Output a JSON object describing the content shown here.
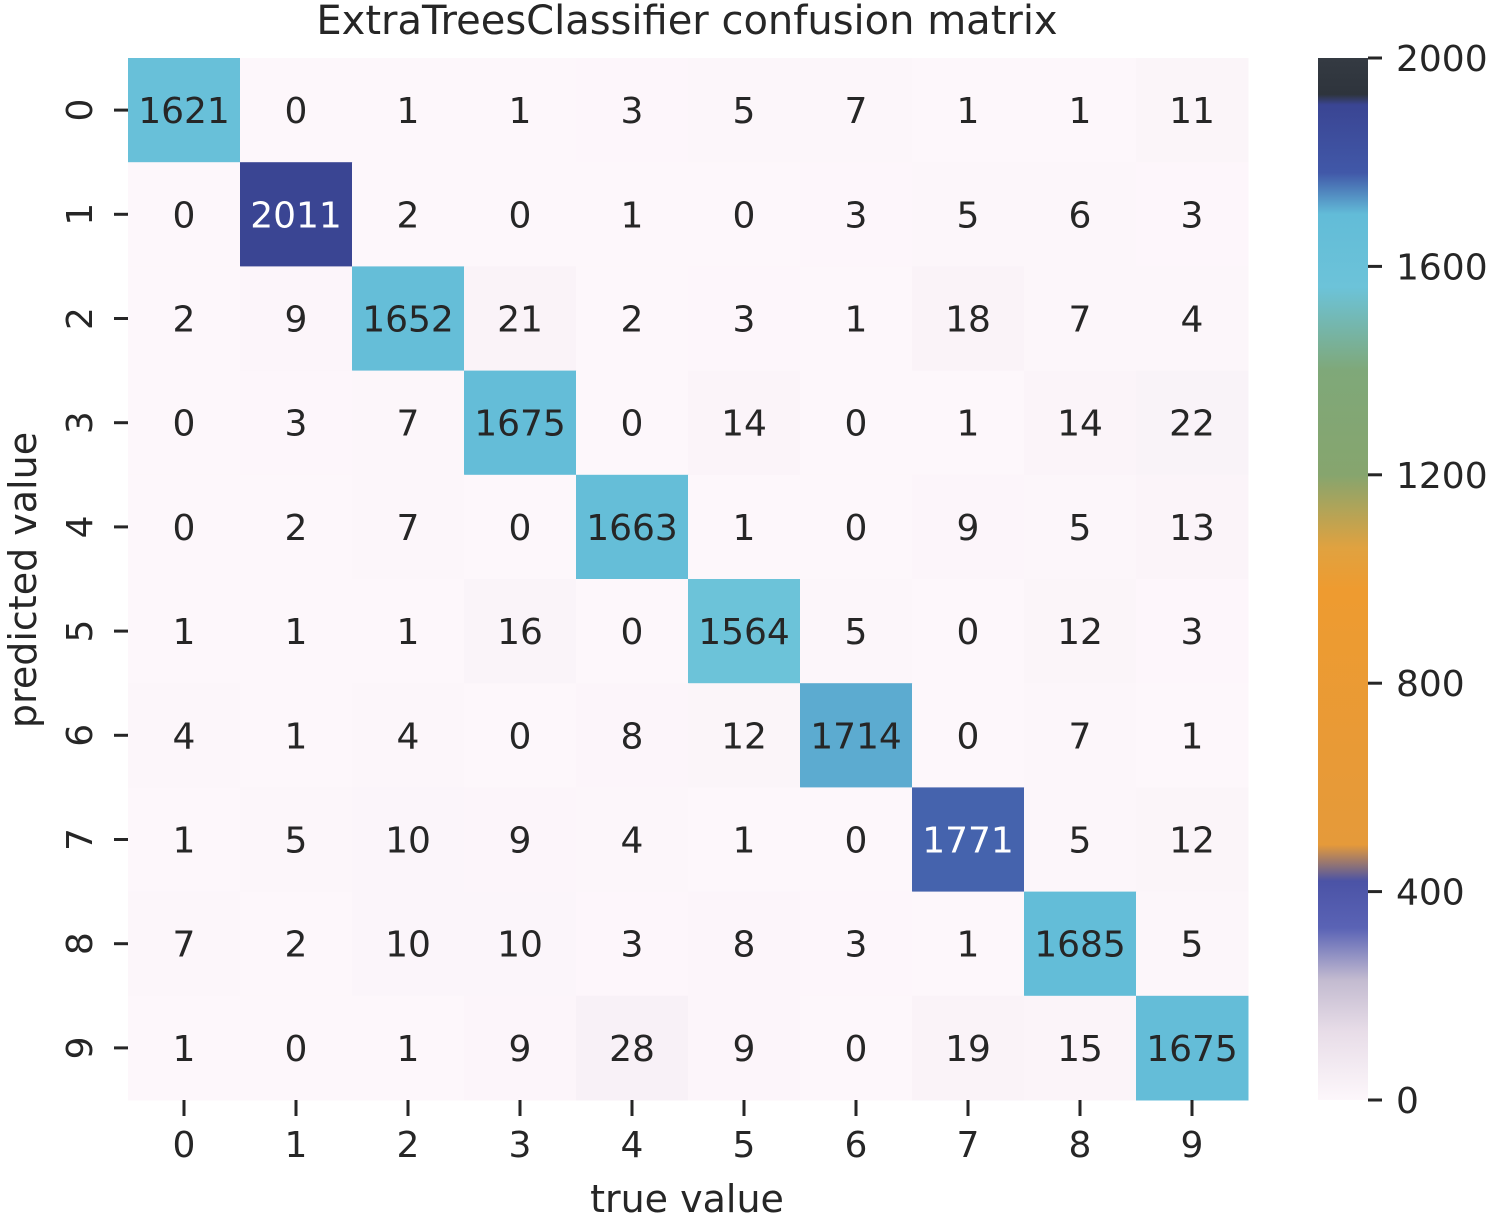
{
  "chart_data": {
    "type": "heatmap",
    "title": "ExtraTreesClassifier confusion matrix",
    "xlabel": "true value",
    "ylabel": "predicted value",
    "x_categories": [
      "0",
      "1",
      "2",
      "3",
      "4",
      "5",
      "6",
      "7",
      "8",
      "9"
    ],
    "y_categories": [
      "0",
      "1",
      "2",
      "3",
      "4",
      "5",
      "6",
      "7",
      "8",
      "9"
    ],
    "values": [
      [
        1621,
        0,
        1,
        1,
        3,
        5,
        7,
        1,
        1,
        11
      ],
      [
        0,
        2011,
        2,
        0,
        1,
        0,
        3,
        5,
        6,
        3
      ],
      [
        2,
        9,
        1652,
        21,
        2,
        3,
        1,
        18,
        7,
        4
      ],
      [
        0,
        3,
        7,
        1675,
        0,
        14,
        0,
        1,
        14,
        22
      ],
      [
        0,
        2,
        7,
        0,
        1663,
        1,
        0,
        9,
        5,
        13
      ],
      [
        1,
        1,
        1,
        16,
        0,
        1564,
        5,
        0,
        12,
        3
      ],
      [
        4,
        1,
        4,
        0,
        8,
        12,
        1714,
        0,
        7,
        1
      ],
      [
        1,
        5,
        10,
        9,
        4,
        1,
        0,
        1771,
        5,
        12
      ],
      [
        7,
        2,
        10,
        10,
        3,
        8,
        3,
        1,
        1685,
        5
      ],
      [
        1,
        0,
        1,
        9,
        28,
        9,
        0,
        19,
        15,
        1675
      ]
    ],
    "colorbar": {
      "range": [
        0,
        2000
      ],
      "ticks": [
        "0",
        "400",
        "800",
        "1200",
        "1600",
        "2000"
      ],
      "stops": [
        {
          "value": 0,
          "color": "#fdf7fb"
        },
        {
          "value": 130,
          "color": "#e8dde8"
        },
        {
          "value": 230,
          "color": "#c3bbd0"
        },
        {
          "value": 330,
          "color": "#5a63b5"
        },
        {
          "value": 420,
          "color": "#4b53a6"
        },
        {
          "value": 490,
          "color": "#e59a3a"
        },
        {
          "value": 980,
          "color": "#ee9b30"
        },
        {
          "value": 1060,
          "color": "#e0a240"
        },
        {
          "value": 1200,
          "color": "#86a56e"
        },
        {
          "value": 1400,
          "color": "#7fa879"
        },
        {
          "value": 1560,
          "color": "#6cc3d9"
        },
        {
          "value": 1700,
          "color": "#62bcd8"
        },
        {
          "value": 1780,
          "color": "#4158a8"
        },
        {
          "value": 1910,
          "color": "#3a4593"
        },
        {
          "value": 1930,
          "color": "#2e343c"
        },
        {
          "value": 2000,
          "color": "#343a42"
        },
        {
          "value": 2011,
          "color": "#3a4593"
        }
      ]
    },
    "text_color_dark": "#262626",
    "text_color_light": "#ffffff"
  }
}
